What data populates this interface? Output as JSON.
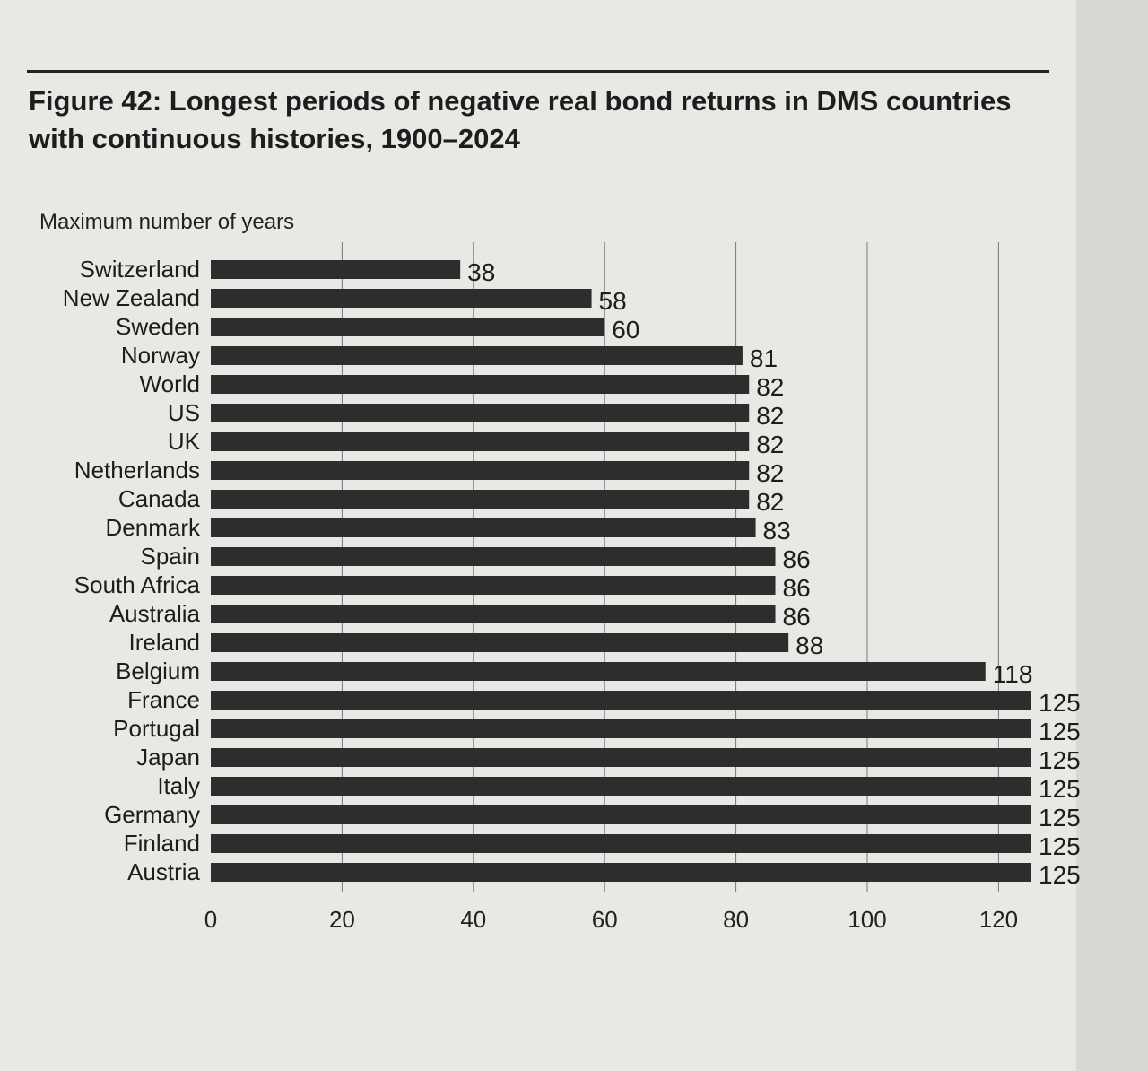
{
  "figure": {
    "title": "Figure 42: Longest periods of negative real bond returns in DMS countries with continuous histories, 1900–2024"
  },
  "chart_data": {
    "type": "bar",
    "orientation": "horizontal",
    "title": "Figure 42: Longest periods of negative real bond returns in DMS countries with continuous histories, 1900–2024",
    "ylabel": "Maximum number of years",
    "xlabel": "",
    "xlim": [
      0,
      125
    ],
    "xticks": [
      0,
      20,
      40,
      60,
      80,
      100,
      120
    ],
    "grid": true,
    "bar_color": "#2b2e2c",
    "categories": [
      "Switzerland",
      "New Zealand",
      "Sweden",
      "Norway",
      "World",
      "US",
      "UK",
      "Netherlands",
      "Canada",
      "Denmark",
      "Spain",
      "South Africa",
      "Australia",
      "Ireland",
      "Belgium",
      "France",
      "Portugal",
      "Japan",
      "Italy",
      "Germany",
      "Finland",
      "Austria"
    ],
    "values": [
      38,
      58,
      60,
      81,
      82,
      82,
      82,
      82,
      82,
      83,
      86,
      86,
      86,
      88,
      118,
      125,
      125,
      125,
      125,
      125,
      125,
      125
    ]
  }
}
